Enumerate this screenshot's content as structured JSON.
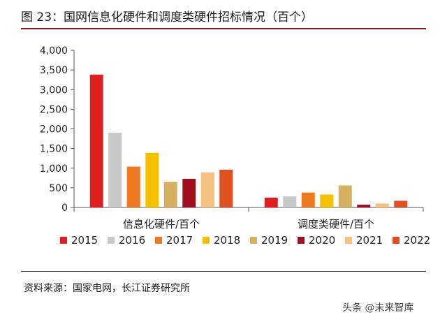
{
  "title": "图 23：国网信息化硬件和调度类硬件招标情况（百个）",
  "source": "资料来源：国家电网，长江证券研究所",
  "watermark": "头条 @未来智库",
  "chart_data": {
    "type": "bar",
    "categories": [
      "信息化硬件/百个",
      "调度类硬件/百个"
    ],
    "series": [
      {
        "name": "2015",
        "color": "#e02020",
        "values": [
          3380,
          250
        ]
      },
      {
        "name": "2016",
        "color": "#c8c8c8",
        "values": [
          1900,
          280
        ]
      },
      {
        "name": "2017",
        "color": "#f07820",
        "values": [
          1040,
          380
        ]
      },
      {
        "name": "2018",
        "color": "#f5c000",
        "values": [
          1390,
          330
        ]
      },
      {
        "name": "2019",
        "color": "#d4b060",
        "values": [
          650,
          560
        ]
      },
      {
        "name": "2020",
        "color": "#a01020",
        "values": [
          730,
          70
        ]
      },
      {
        "name": "2021",
        "color": "#f5c080",
        "values": [
          890,
          100
        ]
      },
      {
        "name": "2022",
        "color": "#e05020",
        "values": [
          960,
          170
        ]
      }
    ],
    "yticks": [
      "0",
      "500",
      "1,000",
      "1,500",
      "2,000",
      "2,500",
      "3,000",
      "3,500",
      "4,000"
    ],
    "ylim": [
      0,
      4000
    ],
    "legend_position": "bottom"
  }
}
